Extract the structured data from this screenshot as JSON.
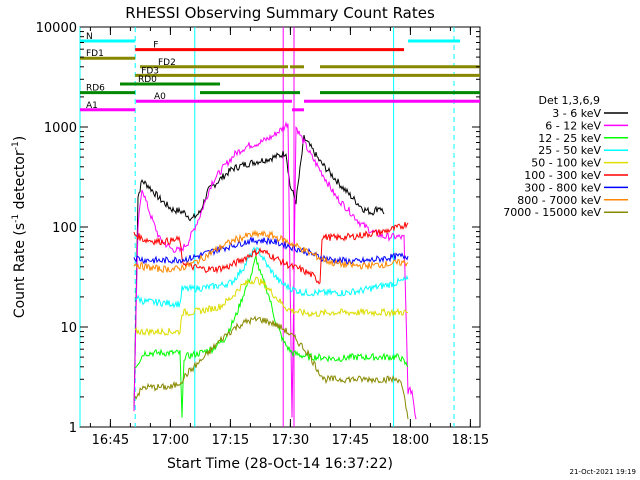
{
  "chart_data": {
    "type": "line",
    "title": "RHESSI Observing Summary Count Rates",
    "xlabel": "Start Time (28-Oct-14 16:37:22)",
    "ylabel": "Count Rate (s⁻¹ detector⁻¹)",
    "ylabel_parts": [
      "Count Rate (s",
      "-1",
      " detector",
      "-1",
      ")"
    ],
    "yscale": "log",
    "ylim": [
      1,
      10000
    ],
    "xlim_minutes": [
      0,
      100
    ],
    "x_ticks": [
      {
        "t": 7.6,
        "label": "16:45"
      },
      {
        "t": 22.6,
        "label": "17:00"
      },
      {
        "t": 37.6,
        "label": "17:15"
      },
      {
        "t": 52.6,
        "label": "17:30"
      },
      {
        "t": 67.6,
        "label": "17:45"
      },
      {
        "t": 82.6,
        "label": "18:00"
      },
      {
        "t": 97.6,
        "label": "18:15"
      }
    ],
    "y_ticks": [
      {
        "v": 1,
        "label": "1"
      },
      {
        "v": 10,
        "label": "10"
      },
      {
        "v": 100,
        "label": "100"
      },
      {
        "v": 1000,
        "label": "1000"
      },
      {
        "v": 10000,
        "label": "10000"
      }
    ],
    "legend_title": "Det 1,3,6,9",
    "legend_position": "right",
    "series": [
      {
        "name": "3 - 6 keV",
        "color": "#000000",
        "points": [
          [
            13.5,
            1.5
          ],
          [
            14.5,
            200
          ],
          [
            15.5,
            290
          ],
          [
            17,
            260
          ],
          [
            20,
            190
          ],
          [
            23,
            150
          ],
          [
            26,
            140
          ],
          [
            28,
            120
          ],
          [
            30,
            140
          ],
          [
            32,
            230
          ],
          [
            35,
            300
          ],
          [
            38,
            380
          ],
          [
            41,
            420
          ],
          [
            44,
            450
          ],
          [
            47,
            480
          ],
          [
            50,
            520
          ],
          [
            51.5,
            560
          ],
          [
            52.5,
            260
          ],
          [
            54,
            180
          ],
          [
            56,
            780
          ],
          [
            58,
            600
          ],
          [
            60,
            450
          ],
          [
            63,
            330
          ],
          [
            66,
            240
          ],
          [
            69,
            180
          ],
          [
            71,
            150
          ],
          [
            73,
            140
          ],
          [
            75,
            160
          ],
          [
            76,
            135
          ]
        ]
      },
      {
        "name": "6 - 12 keV",
        "color": "#ff00ff",
        "points": [
          [
            13.5,
            1.5
          ],
          [
            14.5,
            100
          ],
          [
            15.5,
            250
          ],
          [
            16.5,
            180
          ],
          [
            18,
            120
          ],
          [
            20,
            75
          ],
          [
            23,
            60
          ],
          [
            25,
            58
          ],
          [
            27,
            70
          ],
          [
            30,
            130
          ],
          [
            33,
            280
          ],
          [
            36,
            400
          ],
          [
            39,
            550
          ],
          [
            42,
            650
          ],
          [
            45,
            700
          ],
          [
            48,
            800
          ],
          [
            51,
            1000
          ],
          [
            52,
            1100
          ],
          [
            53,
            1.2
          ],
          [
            54,
            1000
          ],
          [
            56,
            700
          ],
          [
            58,
            500
          ],
          [
            61,
            320
          ],
          [
            64,
            200
          ],
          [
            67,
            150
          ],
          [
            70,
            110
          ],
          [
            73,
            90
          ],
          [
            76,
            80
          ],
          [
            79,
            80
          ],
          [
            81,
            78
          ],
          [
            82,
            2.3
          ],
          [
            83,
            2.3
          ],
          [
            84,
            1.2
          ]
        ]
      },
      {
        "name": "12 - 25 keV",
        "color": "#00ff00",
        "points": [
          [
            13.8,
            4
          ],
          [
            16,
            5.5
          ],
          [
            19,
            5.5
          ],
          [
            23,
            5.5
          ],
          [
            25,
            5.5
          ],
          [
            25.5,
            1.2
          ],
          [
            26,
            5
          ],
          [
            30,
            5.5
          ],
          [
            33,
            6
          ],
          [
            36,
            7.5
          ],
          [
            39,
            13
          ],
          [
            41,
            22
          ],
          [
            43,
            35
          ],
          [
            44,
            50
          ],
          [
            45,
            35
          ],
          [
            47,
            22
          ],
          [
            49,
            11
          ],
          [
            51,
            7
          ],
          [
            53,
            5.5
          ],
          [
            57,
            5
          ],
          [
            60,
            5
          ],
          [
            64,
            4.8
          ],
          [
            68,
            5
          ],
          [
            72,
            5
          ],
          [
            76,
            5
          ],
          [
            80,
            5
          ],
          [
            82,
            4
          ]
        ]
      },
      {
        "name": "25 - 50 keV",
        "color": "#00ffff",
        "points": [
          [
            13.8,
            20
          ],
          [
            16,
            18
          ],
          [
            20,
            17.5
          ],
          [
            25,
            17
          ],
          [
            25.5,
            24
          ],
          [
            28,
            24
          ],
          [
            32,
            25
          ],
          [
            35,
            26
          ],
          [
            38,
            28
          ],
          [
            41,
            40
          ],
          [
            43,
            55
          ],
          [
            44,
            60
          ],
          [
            45,
            55
          ],
          [
            47,
            40
          ],
          [
            50,
            28
          ],
          [
            53,
            24
          ],
          [
            56,
            22
          ],
          [
            59,
            22
          ],
          [
            62,
            22
          ],
          [
            66,
            22
          ],
          [
            70,
            23
          ],
          [
            74,
            25
          ],
          [
            78,
            27
          ],
          [
            82,
            30
          ]
        ]
      },
      {
        "name": "50 - 100 keV",
        "color": "#dddd00",
        "points": [
          [
            13.8,
            9
          ],
          [
            16,
            9
          ],
          [
            20,
            9
          ],
          [
            25,
            9
          ],
          [
            25.5,
            14
          ],
          [
            28,
            14
          ],
          [
            32,
            15
          ],
          [
            35,
            16
          ],
          [
            38,
            20
          ],
          [
            40,
            25
          ],
          [
            42,
            28
          ],
          [
            44,
            30
          ],
          [
            46,
            27
          ],
          [
            48,
            22
          ],
          [
            50,
            18
          ],
          [
            52,
            15
          ],
          [
            55,
            14
          ],
          [
            59,
            13.5
          ],
          [
            63,
            14
          ],
          [
            67,
            14
          ],
          [
            71,
            14
          ],
          [
            75,
            14
          ],
          [
            79,
            14
          ],
          [
            82,
            14
          ]
        ]
      },
      {
        "name": "100 - 300 keV",
        "color": "#ff0000",
        "points": [
          [
            13.5,
            85
          ],
          [
            16,
            75
          ],
          [
            19,
            72
          ],
          [
            22,
            72
          ],
          [
            25,
            75
          ],
          [
            25.5,
            45
          ],
          [
            28,
            40
          ],
          [
            31,
            38
          ],
          [
            34,
            38
          ],
          [
            37,
            40
          ],
          [
            40,
            46
          ],
          [
            43,
            54
          ],
          [
            45,
            58
          ],
          [
            47,
            54
          ],
          [
            50,
            46
          ],
          [
            53,
            40
          ],
          [
            55,
            38
          ],
          [
            58,
            33
          ],
          [
            60,
            28
          ],
          [
            60.5,
            80
          ],
          [
            64,
            78
          ],
          [
            68,
            80
          ],
          [
            72,
            85
          ],
          [
            76,
            90
          ],
          [
            80,
            100
          ],
          [
            82,
            110
          ]
        ]
      },
      {
        "name": "300 - 800 keV",
        "color": "#0000ff",
        "points": [
          [
            13.5,
            50
          ],
          [
            16,
            47
          ],
          [
            20,
            46
          ],
          [
            24,
            47
          ],
          [
            27,
            48
          ],
          [
            30,
            52
          ],
          [
            33,
            57
          ],
          [
            36,
            62
          ],
          [
            39,
            67
          ],
          [
            42,
            72
          ],
          [
            45,
            74
          ],
          [
            48,
            72
          ],
          [
            51,
            67
          ],
          [
            54,
            61
          ],
          [
            57,
            56
          ],
          [
            60,
            50
          ],
          [
            63,
            47
          ],
          [
            66,
            46
          ],
          [
            69,
            45
          ],
          [
            72,
            46
          ],
          [
            75,
            48
          ],
          [
            78,
            50
          ],
          [
            80,
            51
          ],
          [
            82,
            51
          ]
        ]
      },
      {
        "name": "800 - 7000 keV",
        "color": "#ff8800",
        "points": [
          [
            13.5,
            43
          ],
          [
            16,
            40
          ],
          [
            20,
            38
          ],
          [
            24,
            38
          ],
          [
            27,
            41
          ],
          [
            30,
            47
          ],
          [
            33,
            56
          ],
          [
            36,
            66
          ],
          [
            39,
            75
          ],
          [
            42,
            82
          ],
          [
            45,
            85
          ],
          [
            48,
            82
          ],
          [
            51,
            74
          ],
          [
            54,
            65
          ],
          [
            57,
            56
          ],
          [
            60,
            49
          ],
          [
            63,
            44
          ],
          [
            66,
            42
          ],
          [
            69,
            41
          ],
          [
            72,
            41
          ],
          [
            75,
            42
          ],
          [
            78,
            43
          ],
          [
            80,
            44
          ],
          [
            82,
            44
          ]
        ]
      },
      {
        "name": "7000 - 15000 keV",
        "color": "#888800",
        "points": [
          [
            13.8,
            2
          ],
          [
            16,
            2.5
          ],
          [
            19,
            2.5
          ],
          [
            23,
            2.5
          ],
          [
            25,
            2.8
          ],
          [
            27,
            3.5
          ],
          [
            30,
            4.5
          ],
          [
            33,
            6
          ],
          [
            36,
            8
          ],
          [
            39,
            10
          ],
          [
            42,
            11.5
          ],
          [
            45,
            12
          ],
          [
            48,
            11
          ],
          [
            51,
            9.5
          ],
          [
            54,
            7.5
          ],
          [
            57,
            5.5
          ],
          [
            59,
            4
          ],
          [
            61,
            3
          ],
          [
            64,
            3
          ],
          [
            68,
            3
          ],
          [
            72,
            3
          ],
          [
            76,
            3
          ],
          [
            80,
            3
          ],
          [
            81,
            2
          ],
          [
            82,
            1.2
          ]
        ]
      }
    ],
    "flag_bars": [
      {
        "label": "N",
        "color": "#00ffff",
        "level": 1,
        "spans": [
          [
            0,
            13.8
          ],
          [
            82,
            95
          ]
        ]
      },
      {
        "label": "F",
        "color": "#ff0000",
        "level": 2,
        "spans": [
          [
            13.8,
            81
          ]
        ]
      },
      {
        "label": "FD1",
        "color": "#888800",
        "level": 3,
        "spans": [
          [
            0,
            13.8
          ]
        ]
      },
      {
        "label": "FD2",
        "color": "#888800",
        "level": 4,
        "spans": [
          [
            15,
            52
          ],
          [
            52.5,
            56
          ],
          [
            60,
            100
          ]
        ]
      },
      {
        "label": "FD3",
        "color": "#888800",
        "level": 5,
        "spans": [
          [
            13.8,
            100
          ]
        ]
      },
      {
        "label": "RD0",
        "color": "#008800",
        "level": 6,
        "spans": [
          [
            10,
            35
          ]
        ]
      },
      {
        "label": "RD6",
        "color": "#008800",
        "level": 7,
        "spans": [
          [
            0,
            13.8
          ],
          [
            30,
            55
          ],
          [
            60,
            100
          ]
        ]
      },
      {
        "label": "A0",
        "color": "#ff00ff",
        "level": 8,
        "spans": [
          [
            14,
            53
          ],
          [
            56,
            100
          ]
        ]
      },
      {
        "label": "A1",
        "color": "#ff00ff",
        "level": 9,
        "spans": [
          [
            0,
            13.8
          ],
          [
            53,
            56
          ]
        ]
      }
    ],
    "vertical_lines": [
      {
        "t": 0,
        "color": "#00ffff",
        "style": "solid"
      },
      {
        "t": 13.8,
        "color": "#00ffff",
        "style": "dashed"
      },
      {
        "t": 28.7,
        "color": "#00ffff",
        "style": "solid"
      },
      {
        "t": 50.8,
        "color": "#ff00ff",
        "style": "solid"
      },
      {
        "t": 53.5,
        "color": "#ff00ff",
        "style": "solid"
      },
      {
        "t": 78.4,
        "color": "#00ffff",
        "style": "solid"
      },
      {
        "t": 93.5,
        "color": "#00ffff",
        "style": "dashed"
      }
    ],
    "timestamp": "21-Oct-2021 19:19"
  }
}
